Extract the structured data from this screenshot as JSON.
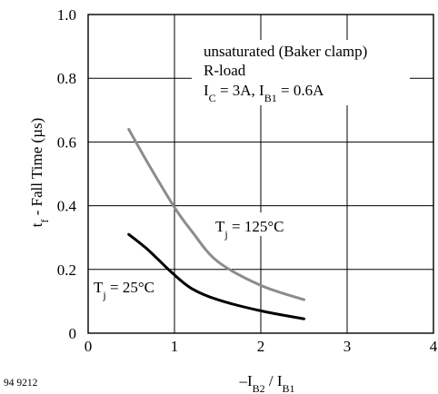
{
  "chart_data": {
    "type": "line",
    "xlim": [
      0,
      4
    ],
    "ylim": [
      0,
      1.0
    ],
    "x_ticks": [
      "0",
      "1",
      "2",
      "3",
      "4"
    ],
    "y_ticks": [
      "0",
      "0.2",
      "0.4",
      "0.6",
      "0.8",
      "1.0"
    ],
    "grid": true,
    "series": [
      {
        "name": "Tj = 125°C",
        "color": "#8c8c8c",
        "points": [
          [
            0.47,
            0.64
          ],
          [
            0.7,
            0.53
          ],
          [
            1.0,
            0.395
          ],
          [
            1.2,
            0.32
          ],
          [
            1.5,
            0.225
          ],
          [
            2.0,
            0.15
          ],
          [
            2.5,
            0.105
          ]
        ]
      },
      {
        "name": "Tj = 25°C",
        "color": "#000000",
        "points": [
          [
            0.47,
            0.31
          ],
          [
            0.7,
            0.26
          ],
          [
            0.97,
            0.19
          ],
          [
            1.2,
            0.14
          ],
          [
            1.5,
            0.105
          ],
          [
            2.0,
            0.07
          ],
          [
            2.5,
            0.045
          ]
        ]
      }
    ]
  },
  "figure_code": "94 9212",
  "annotation": {
    "line1": "unsaturated (Baker clamp)",
    "line2": "R-load",
    "line3_ic": "I",
    "line3_ic_sub": "C",
    "line3_ic_rest": " = 3A, I",
    "line3_ib_sub": "B1",
    "line3_ib_rest": " = 0.6A"
  },
  "labels": {
    "t125_main": "T",
    "t125_sub": "j",
    "t125_rest": " = 125°C",
    "t25_main": "T",
    "t25_sub": "j",
    "t25_rest": " = 25°C"
  },
  "axes": {
    "ylabel_main": "t",
    "ylabel_sub": "f",
    "ylabel_rest": " - Fall Time  (µs)",
    "xlabel_pre": "–I",
    "xlabel_sub1": "B2",
    "xlabel_mid": " / I",
    "xlabel_sub2": "B1"
  }
}
